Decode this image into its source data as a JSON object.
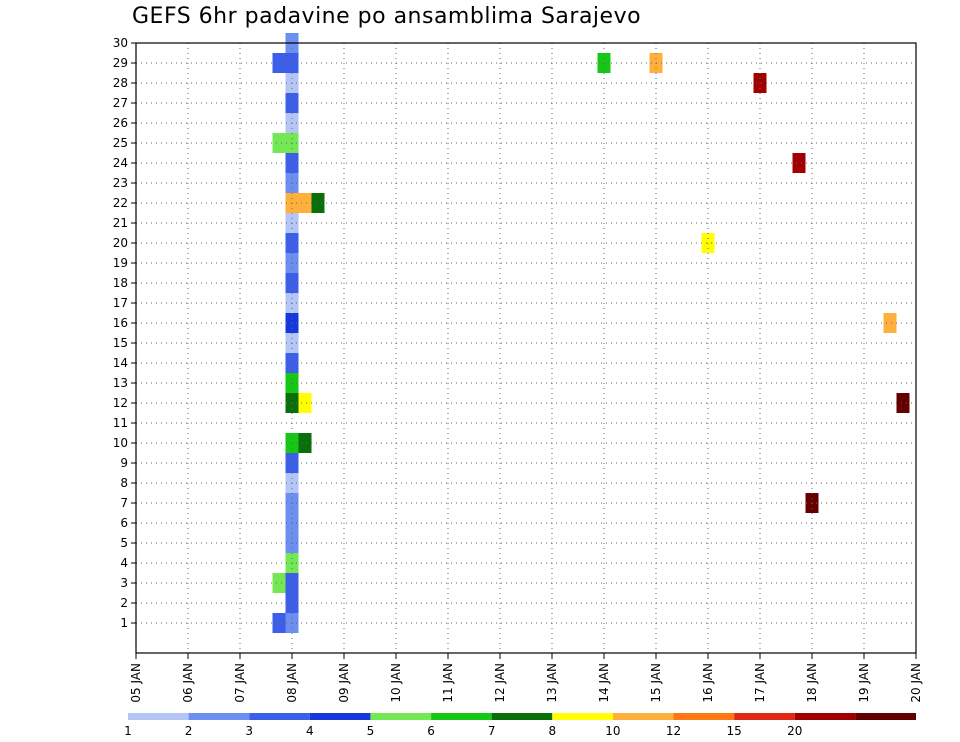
{
  "chart_data": {
    "type": "heatmap",
    "title": "GEFS 6hr padavine po ansamblima Sarajevo",
    "y_range": [
      0,
      30
    ],
    "y_ticks": [
      1,
      2,
      3,
      4,
      5,
      6,
      7,
      8,
      9,
      10,
      11,
      12,
      13,
      14,
      15,
      16,
      17,
      18,
      19,
      20,
      21,
      22,
      23,
      24,
      25,
      26,
      27,
      28,
      29,
      30
    ],
    "x_range_days": [
      "05 JAN",
      "20 JAN"
    ],
    "x_tick_labels": [
      "05 JAN",
      "06 JAN",
      "07 JAN",
      "08 JAN",
      "09 JAN",
      "10 JAN",
      "11 JAN",
      "12 JAN",
      "13 JAN",
      "14 JAN",
      "15 JAN",
      "16 JAN",
      "17 JAN",
      "18 JAN",
      "19 JAN",
      "20 JAN"
    ],
    "time_step_hours": 6,
    "grid": "dotted",
    "colorbar": {
      "labels": [
        "1",
        "2",
        "3",
        "4",
        "5",
        "6",
        "7",
        "8",
        "10",
        "12",
        "15",
        "20"
      ],
      "colors": [
        "#b4c6f5",
        "#6d8ff0",
        "#3c5ee8",
        "#1438de",
        "#74e854",
        "#14c814",
        "#0a6e0a",
        "#ffff00",
        "#ffaf3c",
        "#ff7814",
        "#e02814",
        "#a00000",
        "#640000"
      ]
    },
    "cells": [
      {
        "x": "08 JAN 00Z",
        "m": 1,
        "c": 2
      },
      {
        "x": "08 JAN 00Z",
        "m": 2,
        "c": 3
      },
      {
        "x": "08 JAN 00Z",
        "m": 3,
        "c": 3
      },
      {
        "x": "08 JAN 00Z",
        "m": 4,
        "c": 5
      },
      {
        "x": "08 JAN 00Z",
        "m": 5,
        "c": 2
      },
      {
        "x": "08 JAN 00Z",
        "m": 6,
        "c": 2
      },
      {
        "x": "08 JAN 00Z",
        "m": 7,
        "c": 2
      },
      {
        "x": "08 JAN 00Z",
        "m": 8,
        "c": 1
      },
      {
        "x": "08 JAN 00Z",
        "m": 9,
        "c": 3
      },
      {
        "x": "08 JAN 00Z",
        "m": 10,
        "c": 6
      },
      {
        "x": "08 JAN 00Z",
        "m": 12,
        "c": 7
      },
      {
        "x": "08 JAN 00Z",
        "m": 13,
        "c": 6
      },
      {
        "x": "08 JAN 00Z",
        "m": 14,
        "c": 3
      },
      {
        "x": "08 JAN 00Z",
        "m": 15,
        "c": 1
      },
      {
        "x": "08 JAN 00Z",
        "m": 16,
        "c": 4
      },
      {
        "x": "08 JAN 00Z",
        "m": 17,
        "c": 1
      },
      {
        "x": "08 JAN 00Z",
        "m": 18,
        "c": 3
      },
      {
        "x": "08 JAN 00Z",
        "m": 19,
        "c": 2
      },
      {
        "x": "08 JAN 00Z",
        "m": 20,
        "c": 3
      },
      {
        "x": "08 JAN 00Z",
        "m": 21,
        "c": 1
      },
      {
        "x": "08 JAN 00Z",
        "m": 22,
        "c": 9
      },
      {
        "x": "08 JAN 00Z",
        "m": 23,
        "c": 2
      },
      {
        "x": "08 JAN 00Z",
        "m": 24,
        "c": 3
      },
      {
        "x": "08 JAN 00Z",
        "m": 25,
        "c": 5
      },
      {
        "x": "08 JAN 00Z",
        "m": 26,
        "c": 1
      },
      {
        "x": "08 JAN 00Z",
        "m": 27,
        "c": 3
      },
      {
        "x": "08 JAN 00Z",
        "m": 28,
        "c": 1
      },
      {
        "x": "08 JAN 00Z",
        "m": 29,
        "c": 3
      },
      {
        "x": "08 JAN 00Z",
        "m": 30,
        "c": 2
      },
      {
        "x": "07 JAN 18Z",
        "m": 1,
        "c": 3
      },
      {
        "x": "07 JAN 18Z",
        "m": 3,
        "c": 5
      },
      {
        "x": "07 JAN 18Z",
        "m": 25,
        "c": 5
      },
      {
        "x": "07 JAN 18Z",
        "m": 29,
        "c": 3
      },
      {
        "x": "08 JAN 06Z",
        "m": 10,
        "c": 7
      },
      {
        "x": "08 JAN 06Z",
        "m": 12,
        "c": 8
      },
      {
        "x": "08 JAN 06Z",
        "m": 22,
        "c": 9
      },
      {
        "x": "08 JAN 12Z",
        "m": 22,
        "c": 7
      },
      {
        "x": "17 JAN 00Z",
        "m": 28,
        "c": 12
      },
      {
        "x": "17 JAN 18Z",
        "m": 24,
        "c": 12
      },
      {
        "x": "18 JAN 00Z",
        "m": 7,
        "c": 13
      },
      {
        "x": "19 JAN 18Z",
        "m": 12,
        "c": 13
      },
      {
        "x": "19 JAN 12Z",
        "m": 16,
        "c": 9
      },
      {
        "x": "14 JAN 00Z",
        "m": 29,
        "c": 6
      },
      {
        "x": "15 JAN 00Z",
        "m": 29,
        "c": 9
      },
      {
        "x": "16 JAN 00Z",
        "m": 20,
        "c": 8
      }
    ]
  }
}
